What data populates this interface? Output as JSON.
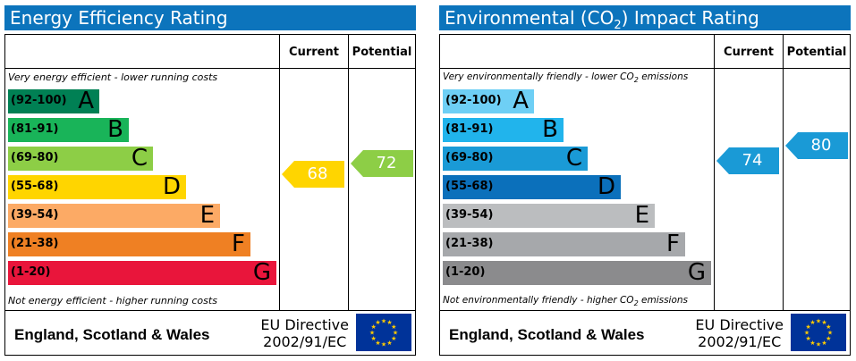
{
  "energy": {
    "title": "Energy Efficiency Rating",
    "col_current": "Current",
    "col_potential": "Potential",
    "top_note": "Very energy efficient - lower running costs",
    "bottom_note": "Not energy efficient - higher running costs",
    "bands": [
      {
        "range": "(92-100)",
        "letter": "A",
        "color": "#008054"
      },
      {
        "range": "(81-91)",
        "letter": "B",
        "color": "#19b459"
      },
      {
        "range": "(69-80)",
        "letter": "C",
        "color": "#8dce46"
      },
      {
        "range": "(55-68)",
        "letter": "D",
        "color": "#ffd500"
      },
      {
        "range": "(39-54)",
        "letter": "E",
        "color": "#fcaa65"
      },
      {
        "range": "(21-38)",
        "letter": "F",
        "color": "#ef8023"
      },
      {
        "range": "(1-20)",
        "letter": "G",
        "color": "#e9153b"
      }
    ],
    "current": {
      "value": "68",
      "color": "#ffd500"
    },
    "potential": {
      "value": "72",
      "color": "#8dce46"
    },
    "footer_country": "England, Scotland & Wales",
    "footer_directive_line1": "EU Directive",
    "footer_directive_line2": "2002/91/EC"
  },
  "environmental": {
    "title_prefix": "Environmental (CO",
    "title_sub": "2",
    "title_suffix": ") Impact Rating",
    "col_current": "Current",
    "col_potential": "Potential",
    "top_note_prefix": "Very environmentally friendly - lower CO",
    "top_note_sub": "2",
    "top_note_suffix": " emissions",
    "bottom_note_prefix": "Not environmentally friendly - higher CO",
    "bottom_note_sub": "2",
    "bottom_note_suffix": " emissions",
    "bands": [
      {
        "range": "(92-100)",
        "letter": "A",
        "color": "#6ecff5"
      },
      {
        "range": "(81-91)",
        "letter": "B",
        "color": "#21b4ec"
      },
      {
        "range": "(69-80)",
        "letter": "C",
        "color": "#1a9ad6"
      },
      {
        "range": "(55-68)",
        "letter": "D",
        "color": "#0b70bb"
      },
      {
        "range": "(39-54)",
        "letter": "E",
        "color": "#bbbdbf"
      },
      {
        "range": "(21-38)",
        "letter": "F",
        "color": "#a6a8ab"
      },
      {
        "range": "(1-20)",
        "letter": "G",
        "color": "#8b8b8d"
      }
    ],
    "current": {
      "value": "74",
      "color": "#1a9ad6"
    },
    "potential": {
      "value": "80",
      "color": "#1a9ad6"
    },
    "footer_country": "England, Scotland & Wales",
    "footer_directive_line1": "EU Directive",
    "footer_directive_line2": "2002/91/EC"
  }
}
